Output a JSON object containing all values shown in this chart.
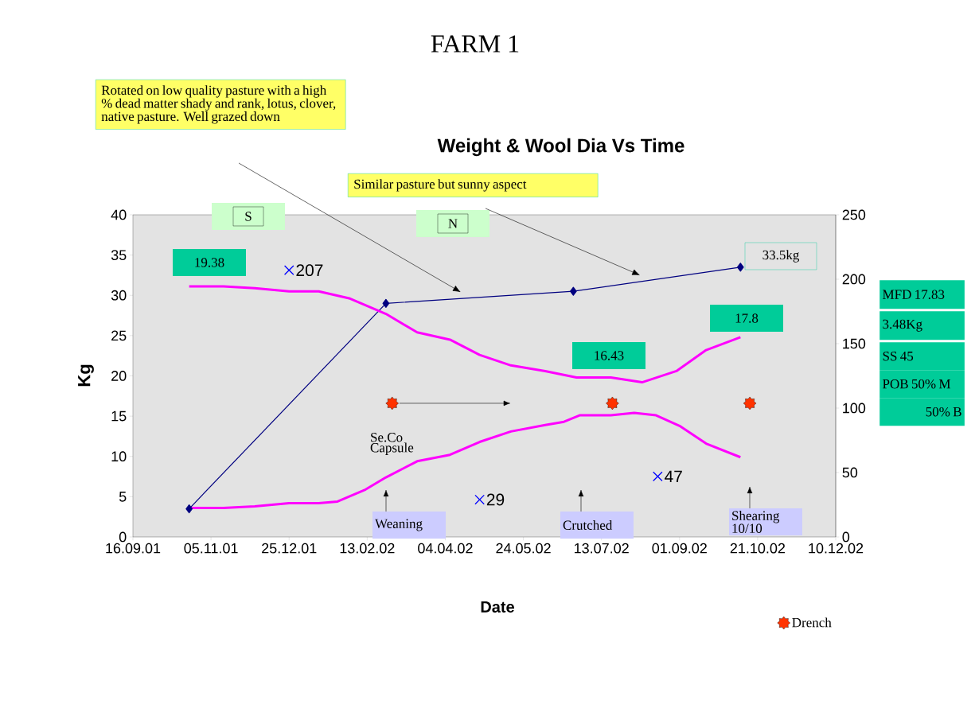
{
  "chart_data": {
    "type": "line",
    "title": "FARM 1",
    "subtitle": "Weight & Wool Dia Vs Time",
    "xlabel": "Date",
    "ylabel": "Kg",
    "xlim": [
      "2001-09-16",
      "2002-12-10"
    ],
    "xticks": [
      {
        "value": "2001-09-16",
        "label": "16.09.01"
      },
      {
        "value": "2001-11-05",
        "label": "05.11.01"
      },
      {
        "value": "2001-12-25",
        "label": "25.12.01"
      },
      {
        "value": "2002-02-13",
        "label": "13.02.02"
      },
      {
        "value": "2002-04-04",
        "label": "04.04.02"
      },
      {
        "value": "2002-05-24",
        "label": "24.05.02"
      },
      {
        "value": "2002-07-13",
        "label": "13.07.02"
      },
      {
        "value": "2002-09-01",
        "label": "01.09.02"
      },
      {
        "value": "2002-10-21",
        "label": "21.10.02"
      },
      {
        "value": "2002-12-10",
        "label": "10.12.02"
      }
    ],
    "ylim": [
      0,
      40
    ],
    "yticks": [
      0,
      5,
      10,
      15,
      20,
      25,
      30,
      35,
      40
    ],
    "y2lim": [
      0,
      250
    ],
    "y2ticks": [
      0,
      50,
      100,
      150,
      200,
      250
    ],
    "legend": "bottom right",
    "series": [
      {
        "color": "#000080",
        "marker": "diamond",
        "x": [
          "2001-10-22",
          "2002-02-25",
          "2002-06-25",
          "2002-10-10"
        ],
        "values": [
          3.5,
          29,
          30.5,
          33.5
        ]
      },
      {
        "color": "#ff00ff",
        "marker": "none",
        "x": [
          "2001-10-22",
          "2001-11-13",
          "2001-12-03",
          "2001-12-25",
          "2002-01-13",
          "2002-02-02",
          "2002-02-25",
          "2002-03-17",
          "2002-04-07",
          "2002-04-26",
          "2002-05-16",
          "2002-06-07",
          "2002-06-27",
          "2002-07-19",
          "2002-08-08",
          "2002-08-30",
          "2002-09-18",
          "2002-10-10"
        ],
        "values": [
          31.1,
          31.1,
          30.9,
          30.5,
          30.5,
          29.6,
          27.7,
          25.4,
          24.5,
          22.6,
          21.3,
          20.6,
          19.8,
          19.8,
          19.2,
          20.6,
          23.2,
          24.8
        ]
      },
      {
        "color": "#ff00ff",
        "marker": "none",
        "x": [
          "2001-10-22",
          "2001-11-13",
          "2001-12-03",
          "2001-12-25",
          "2002-01-13",
          "2002-01-25",
          "2002-02-12",
          "2002-02-25",
          "2002-03-17",
          "2002-04-07",
          "2002-04-26",
          "2002-05-16",
          "2002-06-07",
          "2002-06-19",
          "2002-06-29",
          "2002-07-19",
          "2002-08-03",
          "2002-08-17",
          "2002-09-01",
          "2002-09-18",
          "2002-10-10"
        ],
        "values": [
          3.6,
          3.6,
          3.8,
          4.2,
          4.2,
          4.4,
          5.9,
          7.4,
          9.4,
          10.2,
          11.8,
          13.1,
          13.9,
          14.3,
          15.1,
          15.1,
          15.4,
          15.1,
          13.8,
          11.6,
          9.9
        ]
      },
      {
        "type": "scatter",
        "axis": "y2",
        "color": "#0000ff",
        "marker": "cross",
        "x": [
          "2001-12-25",
          "2002-04-26",
          "2002-08-18"
        ],
        "values": [
          207,
          29,
          47
        ],
        "value_labels": [
          "207",
          "29",
          "47"
        ]
      },
      {
        "type": "scatter",
        "name": "Drench",
        "color": "#ff3300",
        "marker": "star",
        "x": [
          "2002-03-01",
          "2002-07-20",
          "2002-10-16"
        ],
        "values": [
          16.6,
          16.6,
          16.6
        ]
      }
    ],
    "annotations": [
      "19.38",
      "16.43",
      "17.8",
      "33.5kg",
      "S",
      "N",
      "Se.Co Capsule",
      "Weaning",
      "Crutched",
      "Shearing 10/10",
      "Rotated on low quality pasture with a high % dead matter shady and rank, lotus, clover, native pasture. Well grazed down",
      "Similar pasture but sunny aspect",
      "MFD 17.83",
      "3.48Kg",
      "SS 45",
      "POB 50% M",
      "50% B"
    ]
  }
}
